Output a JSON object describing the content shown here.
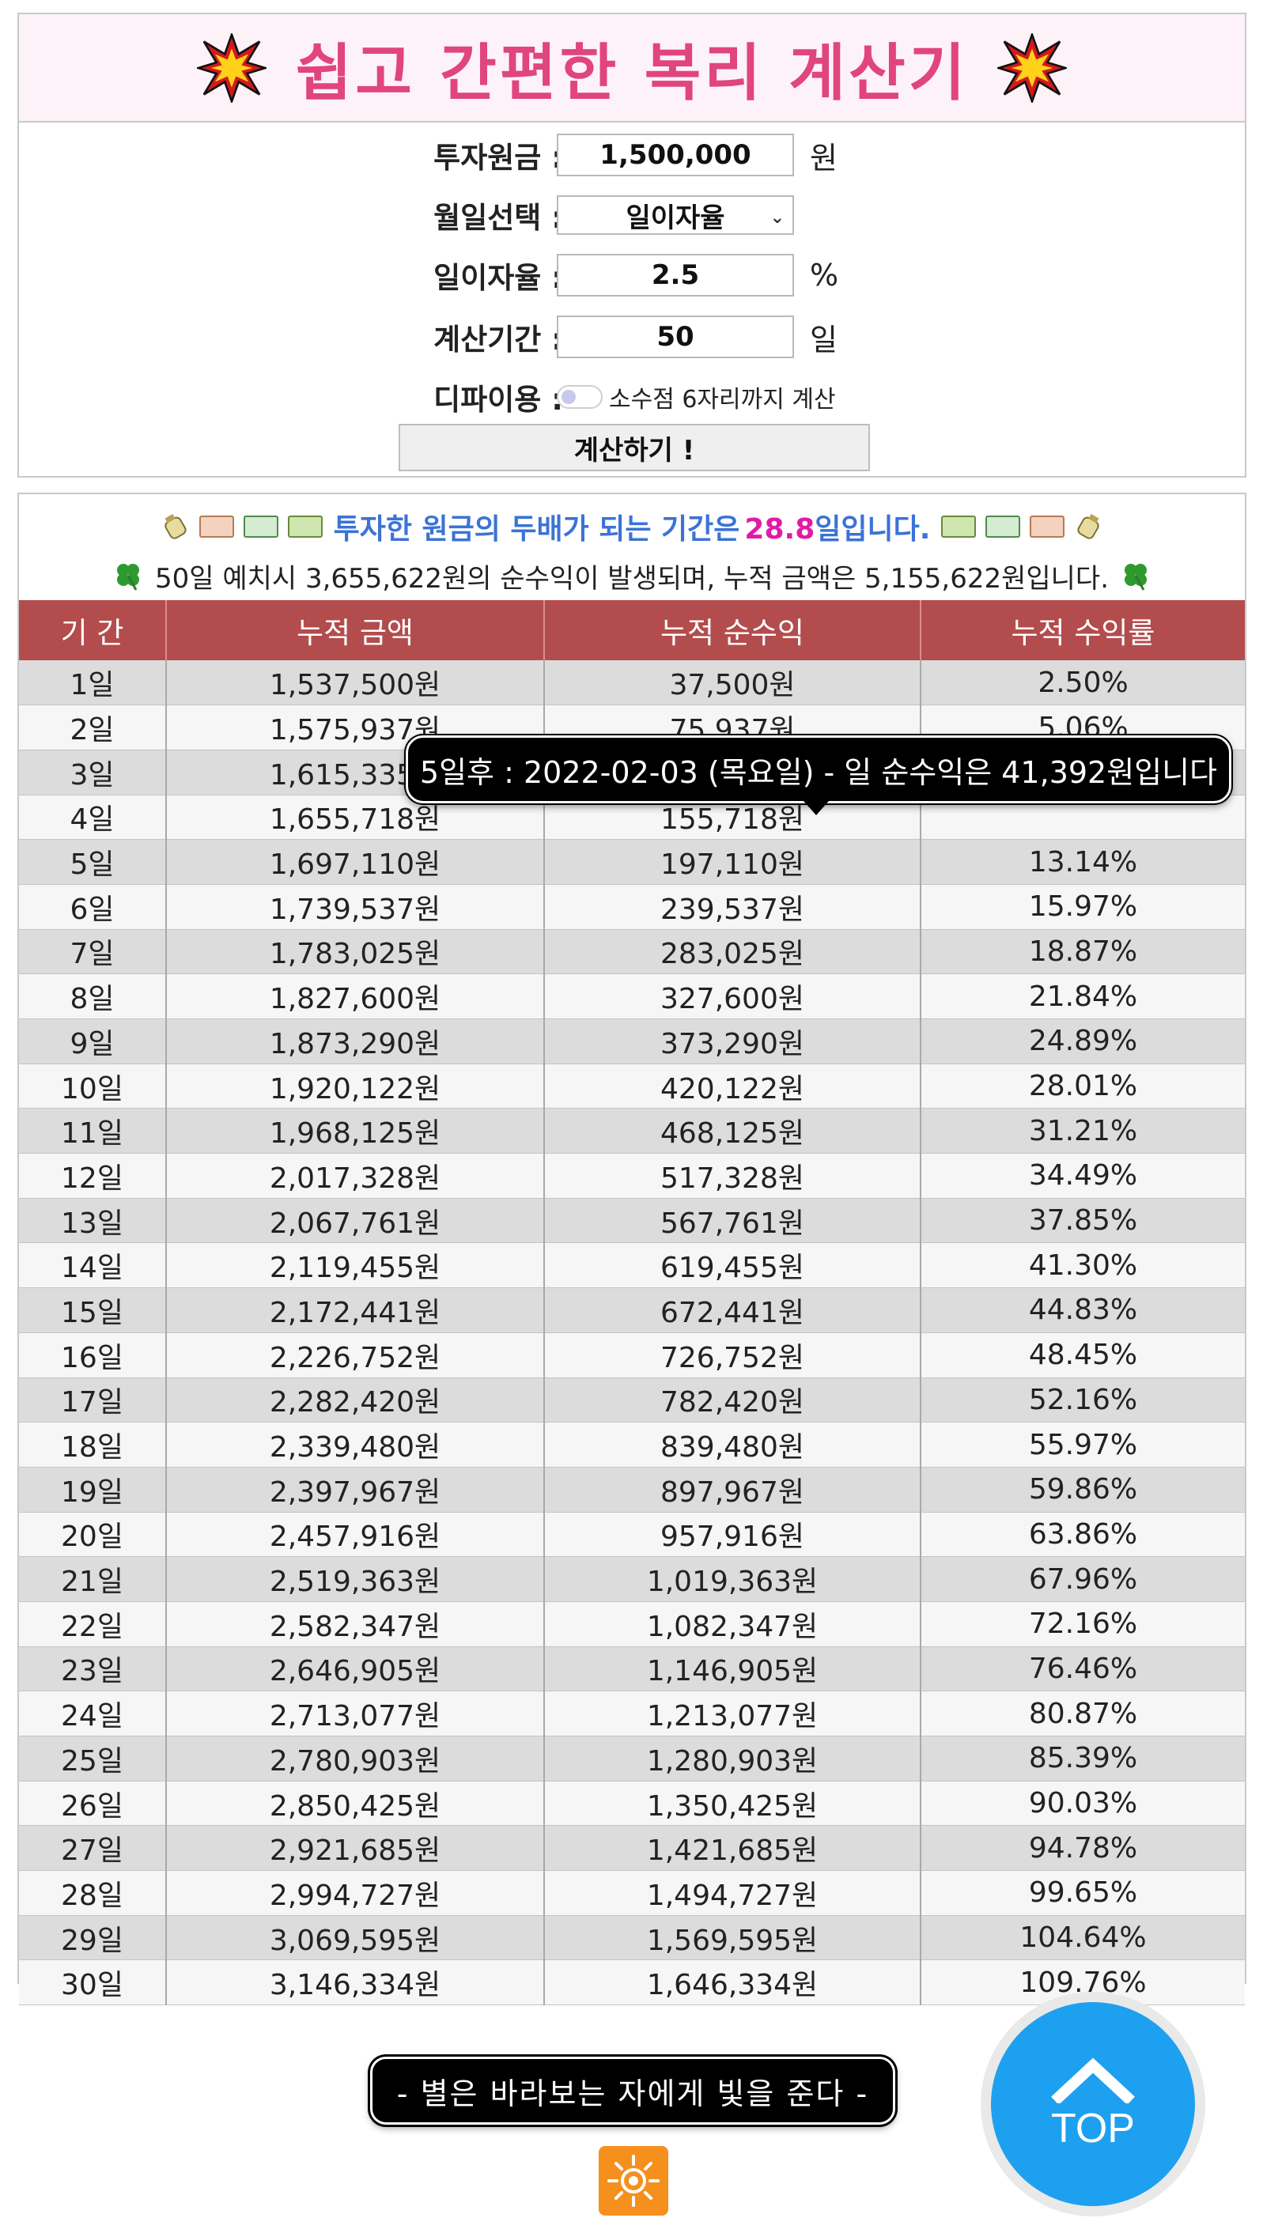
{
  "header": {
    "title": "쉽고 간편한 복리 계산기"
  },
  "form": {
    "principal_label": "투자원금 :",
    "principal_value": "1,500,000",
    "principal_unit": "원",
    "period_type_label": "월일선택 :",
    "period_type_value": "일이자율",
    "rate_label": "일이자율 :",
    "rate_value": "2.5",
    "rate_unit": "%",
    "duration_label": "계산기간 :",
    "duration_value": "50",
    "duration_unit": "일",
    "defi_label": "디파이용 :",
    "defi_option": "소수점 6자리까지 계산",
    "calculate_button": "계산하기 !"
  },
  "summary": {
    "double_prefix": "투자한 원금의 두배가 되는 기간은",
    "double_value": "28.8",
    "double_suffix": "일입니다.",
    "deposit_line": "50일 예치시 3,655,622원의 순수익이 발생되며, 누적 금액은 5,155,622원입니다."
  },
  "table": {
    "headers": [
      "기 간",
      "누적 금액",
      "누적 순수익",
      "누적 수익률"
    ],
    "rows": [
      [
        "1일",
        "1,537,500원",
        "37,500원",
        "2.50%"
      ],
      [
        "2일",
        "1,575,937원",
        "75,937원",
        "5.06%"
      ],
      [
        "3일",
        "1,615,335원",
        "",
        ""
      ],
      [
        "4일",
        "1,655,718원",
        "155,718원",
        ""
      ],
      [
        "5일",
        "1,697,110원",
        "197,110원",
        "13.14%"
      ],
      [
        "6일",
        "1,739,537원",
        "239,537원",
        "15.97%"
      ],
      [
        "7일",
        "1,783,025원",
        "283,025원",
        "18.87%"
      ],
      [
        "8일",
        "1,827,600원",
        "327,600원",
        "21.84%"
      ],
      [
        "9일",
        "1,873,290원",
        "373,290원",
        "24.89%"
      ],
      [
        "10일",
        "1,920,122원",
        "420,122원",
        "28.01%"
      ],
      [
        "11일",
        "1,968,125원",
        "468,125원",
        "31.21%"
      ],
      [
        "12일",
        "2,017,328원",
        "517,328원",
        "34.49%"
      ],
      [
        "13일",
        "2,067,761원",
        "567,761원",
        "37.85%"
      ],
      [
        "14일",
        "2,119,455원",
        "619,455원",
        "41.30%"
      ],
      [
        "15일",
        "2,172,441원",
        "672,441원",
        "44.83%"
      ],
      [
        "16일",
        "2,226,752원",
        "726,752원",
        "48.45%"
      ],
      [
        "17일",
        "2,282,420원",
        "782,420원",
        "52.16%"
      ],
      [
        "18일",
        "2,339,480원",
        "839,480원",
        "55.97%"
      ],
      [
        "19일",
        "2,397,967원",
        "897,967원",
        "59.86%"
      ],
      [
        "20일",
        "2,457,916원",
        "957,916원",
        "63.86%"
      ],
      [
        "21일",
        "2,519,363원",
        "1,019,363원",
        "67.96%"
      ],
      [
        "22일",
        "2,582,347원",
        "1,082,347원",
        "72.16%"
      ],
      [
        "23일",
        "2,646,905원",
        "1,146,905원",
        "76.46%"
      ],
      [
        "24일",
        "2,713,077원",
        "1,213,077원",
        "80.87%"
      ],
      [
        "25일",
        "2,780,903원",
        "1,280,903원",
        "85.39%"
      ],
      [
        "26일",
        "2,850,425원",
        "1,350,425원",
        "90.03%"
      ],
      [
        "27일",
        "2,921,685원",
        "1,421,685원",
        "94.78%"
      ],
      [
        "28일",
        "2,994,727원",
        "1,494,727원",
        "99.65%"
      ],
      [
        "29일",
        "3,069,595원",
        "1,569,595원",
        "104.64%"
      ],
      [
        "30일",
        "3,146,334원",
        "1,646,334원",
        "109.76%"
      ]
    ]
  },
  "tooltip": {
    "text": "5일후 : 2022-02-03 (목요일) - 일 순수익은 41,392원입니다"
  },
  "footer": {
    "quote": "- 별은 바라보는 자에게 빛을 준다 -",
    "top_button": "TOP"
  },
  "icons": {
    "title_left": "explosion-icon",
    "title_right": "explosion-icon",
    "summary_left": [
      "money-bag-icon",
      "yen-bill-icon",
      "euro-bill-icon",
      "dollar-bill-icon"
    ],
    "summary_right": [
      "dollar-bill-icon",
      "euro-bill-icon",
      "yen-bill-icon",
      "money-bag-icon"
    ],
    "deposit": "four-leaf-clover-icon",
    "logo": "sun-logo-icon"
  },
  "colors": {
    "title": "#e0457b",
    "summary_text": "#3b73d6",
    "highlight": "#e21aa6",
    "table_header": "#b34c4d",
    "top_button": "#1ea0f0"
  }
}
